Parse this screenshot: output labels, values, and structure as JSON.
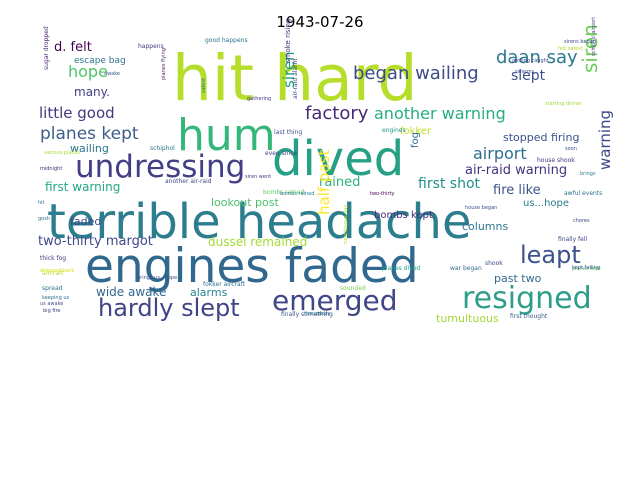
{
  "title": "1943-07-26",
  "colors": {
    "background": "#ffffff",
    "title": "#000000"
  },
  "words": [
    {
      "text": "hit hard",
      "color": "#b5de2b"
    },
    {
      "text": "terrible headache",
      "color": "#2c7e8e"
    },
    {
      "text": "engines faded",
      "color": "#31688e"
    },
    {
      "text": "dived",
      "color": "#25a085"
    },
    {
      "text": "hum",
      "color": "#35b779"
    },
    {
      "text": "undressing",
      "color": "#433e85"
    },
    {
      "text": "emerged",
      "color": "#3f4788"
    },
    {
      "text": "resigned",
      "color": "#2e9e8a"
    },
    {
      "text": "hardly slept",
      "color": "#414487"
    },
    {
      "text": "leapt",
      "color": "#3b528b"
    },
    {
      "text": "factory",
      "color": "#472878"
    },
    {
      "text": "began wailing",
      "color": "#3e4a89"
    },
    {
      "text": "daan say",
      "color": "#2a788e"
    },
    {
      "text": "planes kept",
      "color": "#3d5d8a"
    },
    {
      "text": "another warning",
      "color": "#26ad81"
    },
    {
      "text": "siren",
      "color": "#6ccd5a"
    },
    {
      "text": "siren",
      "color": "#1f9e89"
    },
    {
      "text": "warning",
      "color": "#404688"
    },
    {
      "text": "airport",
      "color": "#2d708e"
    },
    {
      "text": "hope",
      "color": "#50c46a"
    },
    {
      "text": "slept",
      "color": "#3b518b"
    },
    {
      "text": "little good",
      "color": "#463480"
    },
    {
      "text": "d. felt",
      "color": "#440154"
    },
    {
      "text": "rained",
      "color": "#2db27d"
    },
    {
      "text": "first shot",
      "color": "#21908d"
    },
    {
      "text": "half past",
      "color": "#fde725"
    },
    {
      "text": "two-thirty margot",
      "color": "#3f4889"
    },
    {
      "text": "air-raid warning",
      "color": "#46337e"
    },
    {
      "text": "fire like",
      "color": "#3b528b"
    },
    {
      "text": "first warning",
      "color": "#22a884"
    },
    {
      "text": "wailing",
      "color": "#2c738e"
    },
    {
      "text": "stopped firing",
      "color": "#3a538b"
    },
    {
      "text": "lookout post",
      "color": "#4ac16d"
    },
    {
      "text": "many.",
      "color": "#433e85"
    },
    {
      "text": "faded",
      "color": "#3e4a89"
    },
    {
      "text": "dussel remained",
      "color": "#a5db36"
    },
    {
      "text": "wide awake",
      "color": "#31688e"
    },
    {
      "text": "alarms",
      "color": "#26828e"
    },
    {
      "text": "past two",
      "color": "#31688e"
    },
    {
      "text": "tumultuous",
      "color": "#a2da37"
    },
    {
      "text": "bombs kept",
      "color": "#472c7a"
    },
    {
      "text": "columns",
      "color": "#2a778e"
    },
    {
      "text": "fokker",
      "color": "#c2df23"
    },
    {
      "text": "fog",
      "color": "#2e6e8e"
    },
    {
      "text": "us...hope",
      "color": "#287c8e"
    },
    {
      "text": "escape bag",
      "color": "#2c738e"
    },
    {
      "text": "happens",
      "color": "#453882"
    },
    {
      "text": "good happens",
      "color": "#2d708e"
    },
    {
      "text": "smoke rising",
      "color": "#46327e"
    },
    {
      "text": "air-raid alarm",
      "color": "#3f4788"
    },
    {
      "text": "sugar dropped",
      "color": "#482475"
    },
    {
      "text": "planes flying",
      "color": "#481f70"
    },
    {
      "text": "house shook",
      "color": "#463480"
    },
    {
      "text": "schiphol",
      "color": "#2a788e"
    },
    {
      "text": "even since",
      "color": "#443b84"
    },
    {
      "text": "last thing",
      "color": "#3b528b"
    },
    {
      "text": "engines",
      "color": "#21918c"
    },
    {
      "text": "bombs rained",
      "color": "#5ec962"
    },
    {
      "text": "another air-raid",
      "color": "#3e4989"
    },
    {
      "text": "fokker aircraft",
      "color": "#2d708e"
    },
    {
      "text": "planes dived",
      "color": "#1fa088"
    },
    {
      "text": "war began",
      "color": "#2f6c8e"
    },
    {
      "text": "finally fell",
      "color": "#404588"
    },
    {
      "text": "awful events",
      "color": "#2c728e"
    },
    {
      "text": "shook",
      "color": "#3e4c8a"
    },
    {
      "text": "first thought",
      "color": "#365c8d"
    },
    {
      "text": "finally something",
      "color": "#3b528b"
    },
    {
      "text": "thick fog",
      "color": "#453781"
    },
    {
      "text": "aircraft",
      "color": "#b8de29"
    },
    {
      "text": "spread",
      "color": "#2c738e"
    },
    {
      "text": "keeping us",
      "color": "#2e6e8e"
    },
    {
      "text": "midnight",
      "color": "#482878"
    },
    {
      "text": "us awake",
      "color": "#3b528b"
    },
    {
      "text": "big fire",
      "color": "#433d84"
    },
    {
      "text": "two-thirty",
      "color": "#440154"
    },
    {
      "text": "hit",
      "color": "#2c728e"
    },
    {
      "text": "sounded",
      "color": "#7ad151"
    },
    {
      "text": "planes kept",
      "color": "#4ec36b"
    },
    {
      "text": "gosh",
      "color": "#2b758e"
    },
    {
      "text": "brings us...hope",
      "color": "#3e4c8a"
    },
    {
      "text": "bombs rained",
      "color": "#2a788e"
    },
    {
      "text": "house began",
      "color": "#3b528b"
    },
    {
      "text": "chores",
      "color": "#404688"
    },
    {
      "text": "kept falling",
      "color": "#3e4a89"
    },
    {
      "text": "brings",
      "color": "#29798e"
    },
    {
      "text": "getting caught",
      "color": "#3f4889"
    },
    {
      "text": "swarms",
      "color": "#3c4f8a"
    },
    {
      "text": "felt safest",
      "color": "#b5de2b"
    },
    {
      "text": "schiphol airport",
      "color": "#433e85"
    },
    {
      "text": "starting dinner",
      "color": "#9bd93c"
    },
    {
      "text": "soon",
      "color": "#3b518b"
    },
    {
      "text": "safest",
      "color": "#2a788e"
    },
    {
      "text": "sirens began",
      "color": "#3e4a89"
    },
    {
      "text": "gathering",
      "color": "#463480"
    },
    {
      "text": "siren went",
      "color": "#433e85"
    },
    {
      "text": "tumultuous day",
      "color": "#b5de2b"
    },
    {
      "text": "thousands",
      "color": "#2b748e"
    },
    {
      "text": "awake",
      "color": "#3b528b"
    },
    {
      "text": "various places",
      "color": "#a8db34"
    },
    {
      "text": "dropped back",
      "color": "#d8e219"
    }
  ]
}
